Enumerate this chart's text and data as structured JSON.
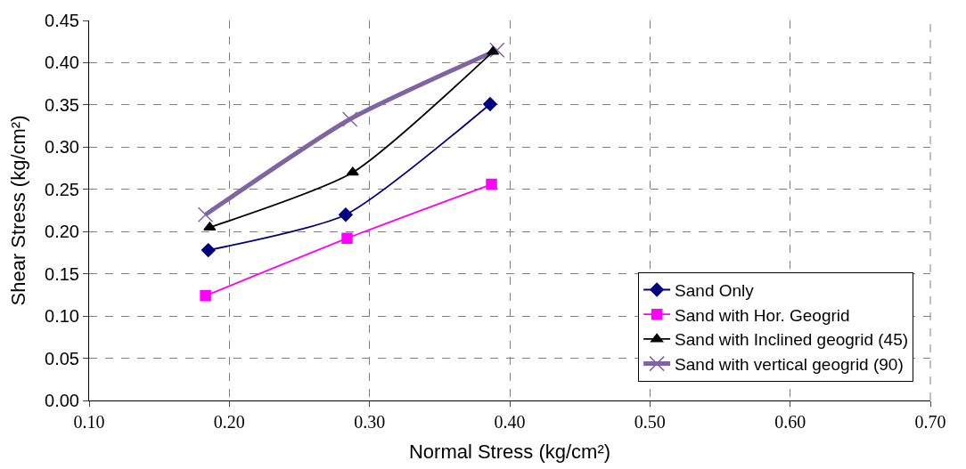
{
  "chart_data": {
    "type": "line",
    "xlabel": "Normal Stress (kg/cm²)",
    "ylabel": "Shear Stress (kg/cm²)",
    "xlim": [
      0.1,
      0.7
    ],
    "xticks": [
      {
        "value": 0.1,
        "label": "0.10"
      },
      {
        "value": 0.2,
        "label": "0.20"
      },
      {
        "value": 0.3,
        "label": "0.30"
      },
      {
        "value": 0.4,
        "label": "0.40"
      },
      {
        "value": 0.5,
        "label": "0.50"
      },
      {
        "value": 0.6,
        "label": "0.60"
      },
      {
        "value": 0.7,
        "label": "0.70"
      }
    ],
    "ylim": [
      0,
      0.45
    ],
    "yticks": [
      {
        "value": 0,
        "label": "0.00"
      },
      {
        "value": 0.05,
        "label": "0.05"
      },
      {
        "value": 0.1,
        "label": "0.10"
      },
      {
        "value": 0.15,
        "label": "0.15"
      },
      {
        "value": 0.2,
        "label": "0.20"
      },
      {
        "value": 0.25,
        "label": "0.25"
      },
      {
        "value": 0.3,
        "label": "0.30"
      },
      {
        "value": 0.35,
        "label": "0.35"
      },
      {
        "value": 0.4,
        "label": "0.40"
      },
      {
        "value": 0.45,
        "label": "0.45"
      }
    ],
    "grid": true,
    "legend": "bottom right",
    "series": [
      {
        "name": "Sand Only",
        "color": "#000080",
        "marker": "diamond",
        "x": [
          0.185,
          0.283,
          0.386
        ],
        "values": [
          0.178,
          0.22,
          0.351
        ]
      },
      {
        "name": "Sand with Hor. Geogrid",
        "color": "#ff00ff",
        "marker": "square",
        "x": [
          0.183,
          0.284,
          0.387
        ],
        "values": [
          0.124,
          0.192,
          0.256
        ]
      },
      {
        "name": "Sand with Inclined geogrid (45)",
        "color": "#000000",
        "marker": "triangle",
        "x": [
          0.186,
          0.288,
          0.388
        ],
        "values": [
          0.205,
          0.27,
          0.413
        ]
      },
      {
        "name": "Sand with vertical geogrid (90)",
        "color": "#8064a2",
        "marker": "cross",
        "x": [
          0.183,
          0.286,
          0.391
        ],
        "values": [
          0.22,
          0.333,
          0.415
        ]
      }
    ]
  }
}
